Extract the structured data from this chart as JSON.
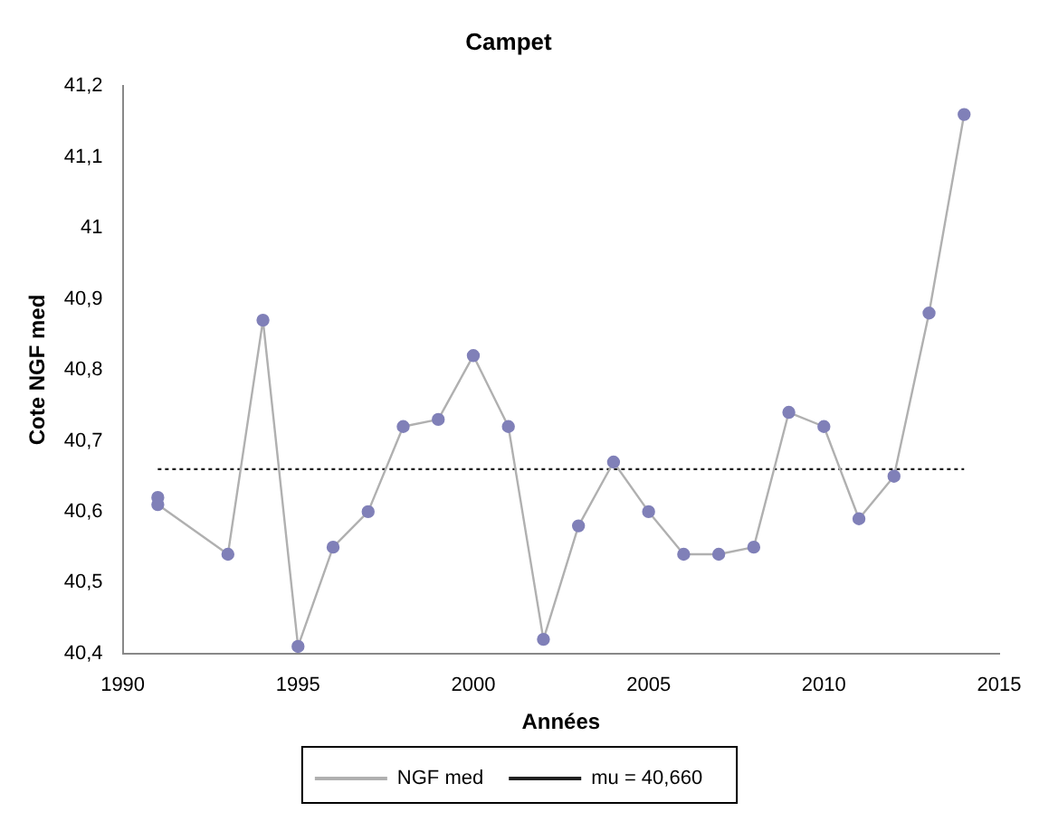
{
  "chart_data": {
    "type": "line",
    "title": "Campet",
    "xlabel": "Années",
    "ylabel": "Cote NGF med",
    "xlim": [
      1990,
      2015
    ],
    "xticks": [
      1990,
      1995,
      2000,
      2005,
      2010,
      2015
    ],
    "ylim": [
      40.4,
      41.2
    ],
    "yticks": [
      {
        "value": 40.4,
        "label": "40,4"
      },
      {
        "value": 40.5,
        "label": "40,5"
      },
      {
        "value": 40.6,
        "label": "40,6"
      },
      {
        "value": 40.7,
        "label": "40,7"
      },
      {
        "value": 40.8,
        "label": "40,8"
      },
      {
        "value": 40.9,
        "label": "40,9"
      },
      41,
      {
        "value": 41.1,
        "label": "41,1"
      },
      {
        "value": 41.2,
        "label": "41,2"
      }
    ],
    "grid": false,
    "legend": "bottom",
    "series": [
      {
        "name": "NGF med",
        "color": "#8080b8",
        "marker": "circle",
        "line_style": "solid",
        "x": [
          1991,
          1991,
          1993,
          1994,
          1995,
          1996,
          1997,
          1998,
          1999,
          2000,
          2001,
          2002,
          2003,
          2004,
          2005,
          2006,
          2007,
          2008,
          2009,
          2010,
          2011,
          2012,
          2013,
          2014
        ],
        "values": [
          40.62,
          40.61,
          40.54,
          40.87,
          40.41,
          40.55,
          40.6,
          40.72,
          40.73,
          40.82,
          40.72,
          40.42,
          40.58,
          40.67,
          40.6,
          40.54,
          40.54,
          40.55,
          40.74,
          40.72,
          40.59,
          40.65,
          40.88,
          41.16
        ]
      },
      {
        "name": "mu = 40,660",
        "color": "#202020",
        "marker": "none",
        "line_style": "dotted",
        "x": [
          1991,
          2014
        ],
        "values": [
          40.66,
          40.66
        ]
      }
    ]
  }
}
